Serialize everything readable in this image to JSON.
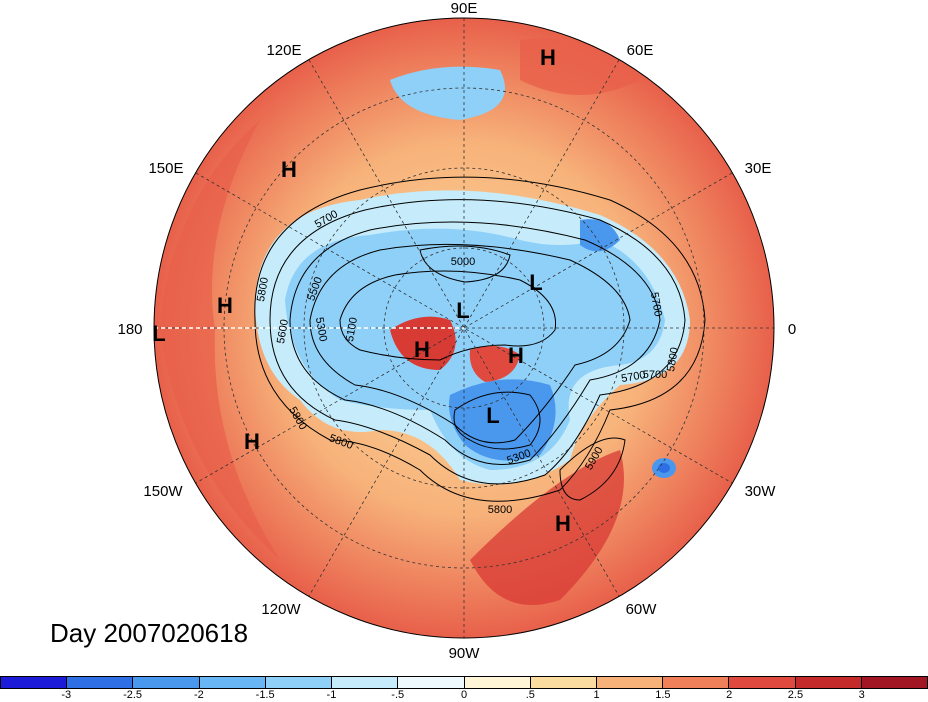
{
  "longitude_labels": [
    {
      "text": "90E",
      "id": "lon-90e"
    },
    {
      "text": "60E",
      "id": "lon-60e"
    },
    {
      "text": "30E",
      "id": "lon-30e"
    },
    {
      "text": "0",
      "id": "lon-0"
    },
    {
      "text": "30W",
      "id": "lon-30w"
    },
    {
      "text": "60W",
      "id": "lon-60w"
    },
    {
      "text": "90W",
      "id": "lon-90w"
    },
    {
      "text": "120W",
      "id": "lon-120w"
    },
    {
      "text": "150W",
      "id": "lon-150w"
    },
    {
      "text": "180",
      "id": "lon-180"
    },
    {
      "text": "150E",
      "id": "lon-150e"
    },
    {
      "text": "120E",
      "id": "lon-120e"
    }
  ],
  "pressure_centers": [
    {
      "text": "H",
      "kind": "high"
    },
    {
      "text": "H",
      "kind": "high"
    },
    {
      "text": "H",
      "kind": "high"
    },
    {
      "text": "H",
      "kind": "high"
    },
    {
      "text": "H",
      "kind": "high"
    },
    {
      "text": "H",
      "kind": "high"
    },
    {
      "text": "H",
      "kind": "high"
    },
    {
      "text": "L",
      "kind": "low"
    },
    {
      "text": "L",
      "kind": "low"
    },
    {
      "text": "L",
      "kind": "low"
    },
    {
      "text": "L",
      "kind": "low"
    }
  ],
  "contour_labels": [
    "5000",
    "5100",
    "5300",
    "5500",
    "5700",
    "5800",
    "5900",
    "5600",
    "5700",
    "5800",
    "5800",
    "5700",
    "5800",
    "5300",
    "5700",
    "5800"
  ],
  "title": "Day 2007020618",
  "colorbar": {
    "ticks": [
      "-3",
      "-2.5",
      "-2",
      "-1.5",
      "-1",
      "-.5",
      "0",
      ".5",
      "1",
      "1.5",
      "2",
      "2.5",
      "3"
    ],
    "colors": [
      "#1c1cd8",
      "#2f6fe6",
      "#4a98ee",
      "#69b6f4",
      "#8fd0f8",
      "#c6ecfb",
      "#eef9fd",
      "#fdf5d6",
      "#fbdca0",
      "#f7b27a",
      "#f0805a",
      "#e04a3e",
      "#c42a2a",
      "#a11622"
    ]
  },
  "colors": {
    "warm_fill": "#f0805a",
    "cool_fill": "#8fd0f8"
  }
}
